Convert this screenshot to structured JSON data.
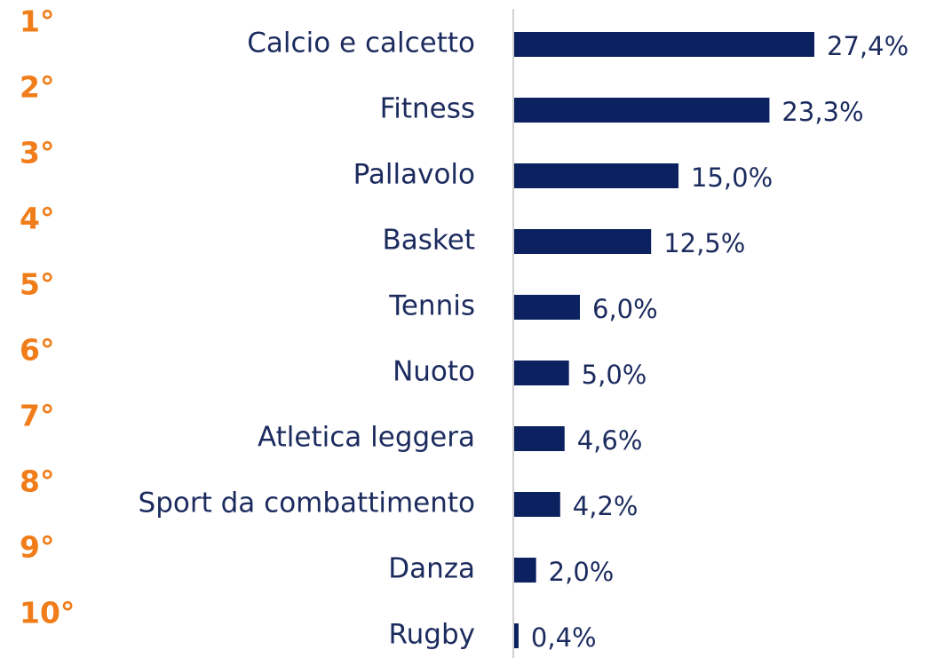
{
  "chart_data": {
    "type": "bar",
    "orientation": "horizontal",
    "ranks": [
      "1°",
      "2°",
      "3°",
      "4°",
      "5°",
      "6°",
      "7°",
      "8°",
      "9°",
      "10°"
    ],
    "categories": [
      "Calcio e calcetto",
      "Fitness",
      "Pallavolo",
      "Basket",
      "Tennis",
      "Nuoto",
      "Atletica leggera",
      "Sport da combattimento",
      "Danza",
      "Rugby"
    ],
    "values": [
      27.4,
      23.3,
      15.0,
      12.5,
      6.0,
      5.0,
      4.6,
      4.2,
      2.0,
      0.4
    ],
    "value_labels": [
      "27,4%",
      "23,3%",
      "15,0%",
      "12,5%",
      "6,0%",
      "5,0%",
      "4,6%",
      "4,2%",
      "2,0%",
      "0,4%"
    ],
    "color": "#0b2160"
  }
}
